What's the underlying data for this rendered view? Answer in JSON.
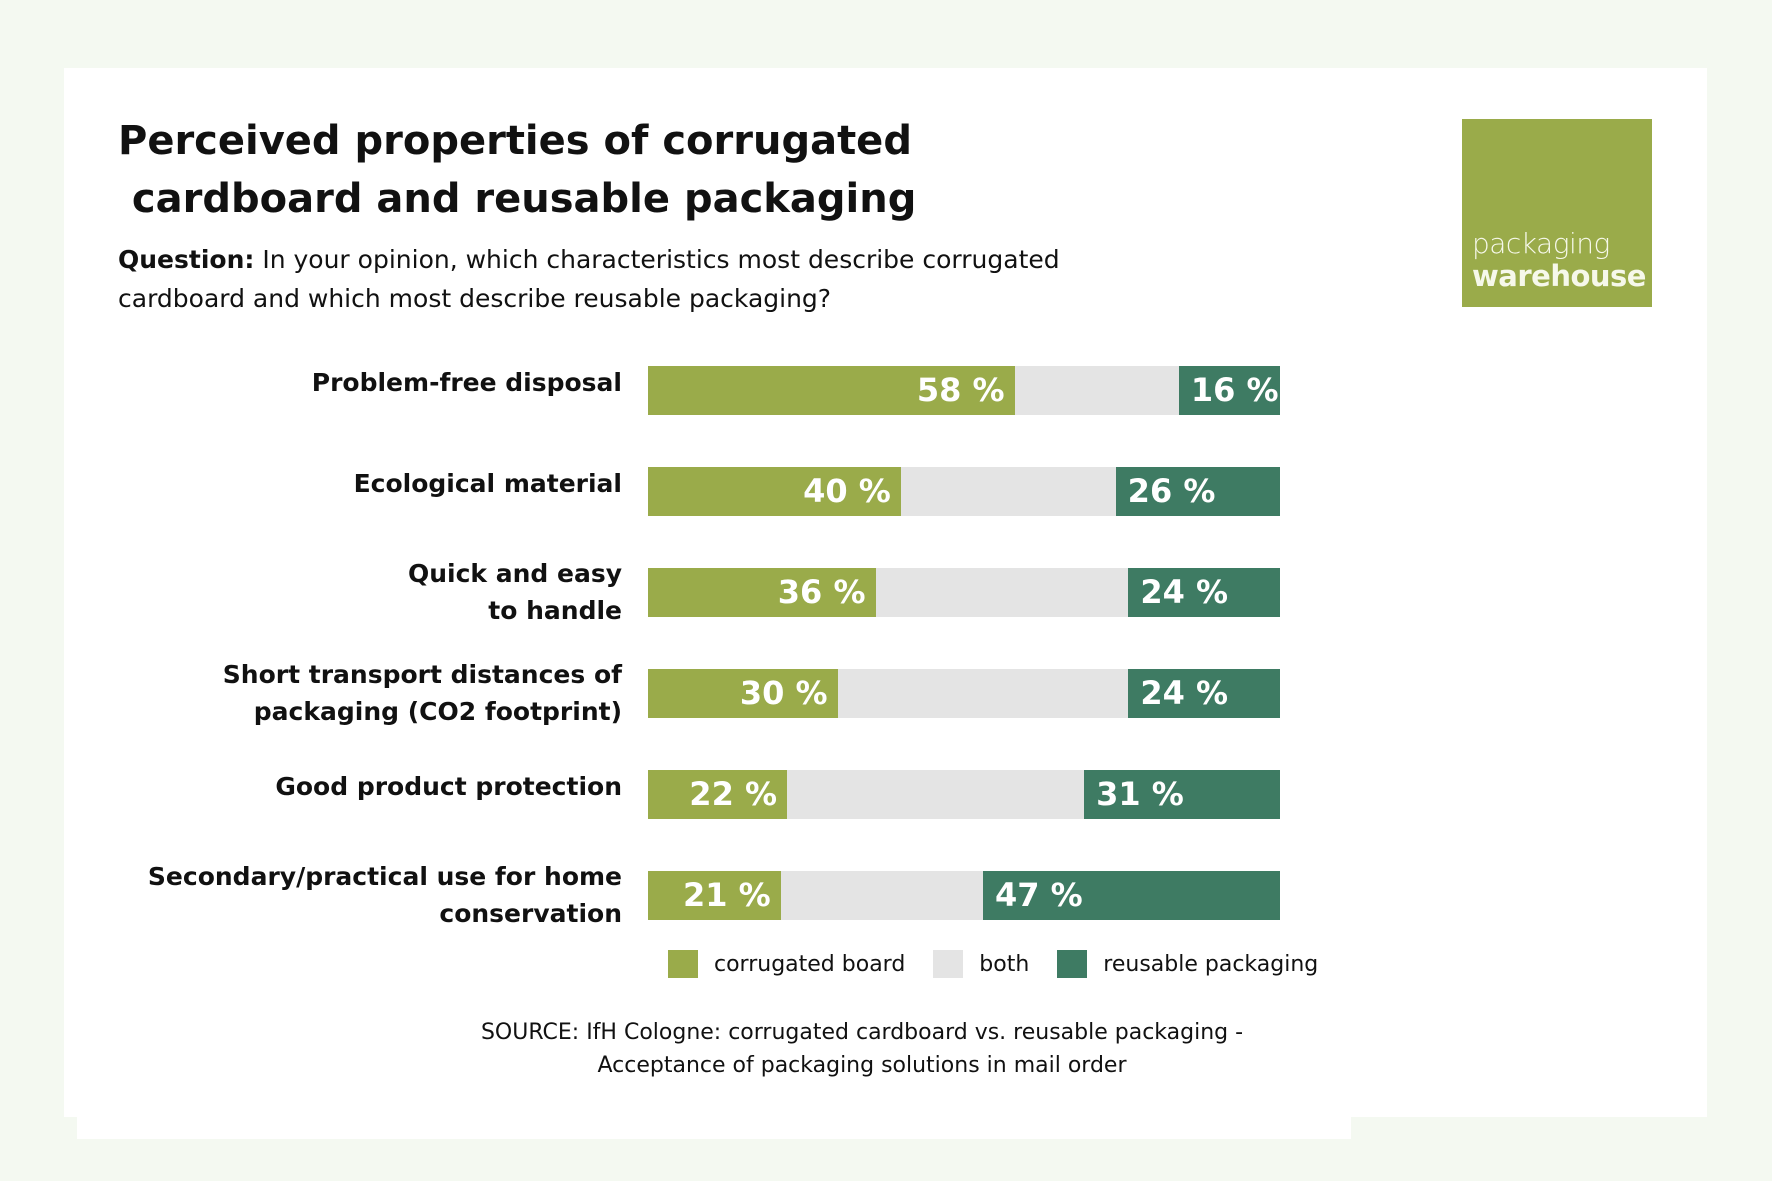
{
  "title_lines": [
    "Perceived properties of corrugated",
    " cardboard and reusable packaging"
  ],
  "question": {
    "label": "Question:",
    "text": " In your opinion, which characteristics most describe corrugated cardboard and which most describe reusable packaging?"
  },
  "logo": {
    "line1": "packaging",
    "line2": "warehouse"
  },
  "source": [
    "SOURCE: IfH Cologne: corrugated cardboard vs. reusable packaging -",
    "Acceptance of packaging solutions in mail order"
  ],
  "chart_data": {
    "type": "bar",
    "stacked": true,
    "orientation": "horizontal",
    "categories": [
      [
        "Problem-free disposal"
      ],
      [
        "Ecological material"
      ],
      [
        "Quick and easy",
        "to handle"
      ],
      [
        "Short transport distances of",
        "packaging (CO2 footprint)"
      ],
      [
        "Good product protection"
      ],
      [
        "Secondary/practical use for home",
        "conservation"
      ]
    ],
    "series": [
      {
        "name": "corrugated board",
        "color": "#9aab4a",
        "values": [
          58,
          40,
          36,
          30,
          22,
          21
        ]
      },
      {
        "name": "both",
        "color": "#e4e4e4",
        "values": [
          26,
          34,
          40,
          46,
          47,
          32
        ]
      },
      {
        "name": "reusable packaging",
        "color": "#3e7b63",
        "values": [
          16,
          26,
          24,
          24,
          31,
          47
        ]
      }
    ],
    "value_labels": {
      "corrugated": [
        "58 %",
        "40 %",
        "36 %",
        "30 %",
        "22 %",
        "21 %"
      ],
      "reusable": [
        "16 %",
        "26 %",
        "24 %",
        "24 %",
        "31 %",
        "47 %"
      ]
    },
    "xlim": [
      0,
      100
    ],
    "legend_position": "bottom",
    "grid": false
  }
}
